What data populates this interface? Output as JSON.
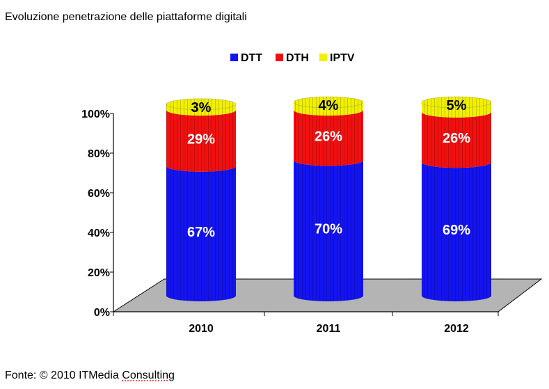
{
  "page": {
    "title": "Evoluzione penetrazione delle piattaforme digitali",
    "source_prefix": "Fonte: © 2010 ITMedia ",
    "source_underlined": "Consulting"
  },
  "colors": {
    "DTT": "#1414f0",
    "DTH": "#f01010",
    "IPTV": "#f0f000",
    "floor": "#b4b4b4"
  },
  "chart_data": {
    "type": "bar",
    "stacked": true,
    "style": "3d-cylinder",
    "categories": [
      "2010",
      "2011",
      "2012"
    ],
    "series": [
      {
        "name": "DTT",
        "values": [
          67,
          70,
          69
        ],
        "labels": [
          "67%",
          "70%",
          "69%"
        ]
      },
      {
        "name": "DTH",
        "values": [
          29,
          26,
          26
        ],
        "labels": [
          "29%",
          "26%",
          "26%"
        ]
      },
      {
        "name": "IPTV",
        "values": [
          3,
          4,
          5
        ],
        "labels": [
          "3%",
          "4%",
          "5%"
        ]
      }
    ],
    "ylim": [
      0,
      100
    ],
    "yticks": [
      "0%",
      "20%",
      "40%",
      "60%",
      "80%",
      "100%"
    ],
    "legend": "top",
    "grid": false
  }
}
